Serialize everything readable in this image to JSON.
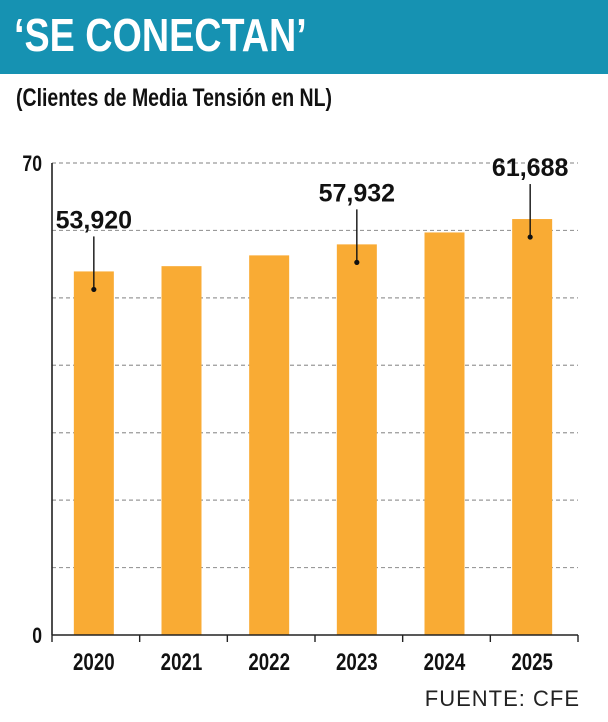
{
  "header": {
    "title": "‘SE CONECTAN’",
    "subtitle": "(Clientes de Media Tensión en NL)"
  },
  "source": "FUENTE: CFE",
  "colors": {
    "header": "#1692b2",
    "bar": "#f9ab34",
    "grid": "#9a9a9a",
    "text": "#111111"
  },
  "chart_data": {
    "type": "bar",
    "title": "‘SE CONECTAN’",
    "subtitle": "(Clientes de Media Tensión en NL)",
    "xlabel": "",
    "ylabel": "",
    "categories": [
      "2020",
      "2021",
      "2022",
      "2023",
      "2024",
      "2025"
    ],
    "values": [
      53.92,
      54.7,
      56.3,
      57.932,
      59.7,
      61.688
    ],
    "value_labels": [
      "53,920",
      "",
      "",
      "57,932",
      "",
      "61,688"
    ],
    "ylim": [
      0,
      70
    ],
    "y_tick_labels": [
      "0",
      "70"
    ],
    "gridlines": [
      10,
      20,
      30,
      40,
      50,
      60,
      70
    ],
    "grid": true
  }
}
